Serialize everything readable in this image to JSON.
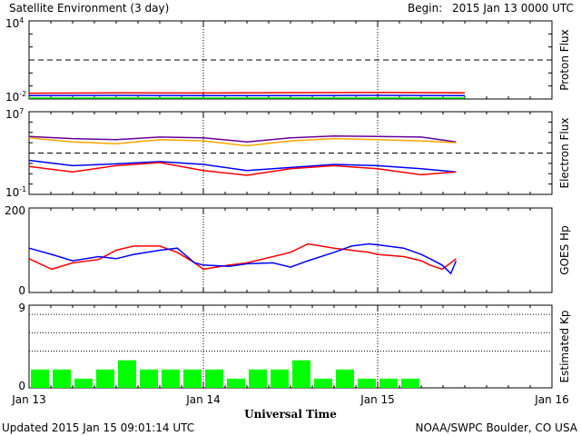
{
  "title": "Satellite Environment (3 day)",
  "begin_label": "Begin:",
  "begin_value": "2015 Jan 13 0000 UTC",
  "xlabel": "Universal Time",
  "updated": "Updated 2015 Jan 15 09:01:14 UTC",
  "credit": "NOAA/SWPC Boulder, CO USA",
  "x_ticks": [
    "Jan 13",
    "Jan 14",
    "Jan 15",
    "Jan 16"
  ],
  "colors": {
    "red": "#ff0000",
    "blue": "#0000ff",
    "green": "#00ff00",
    "orange": "#ffa500",
    "purple": "#660099",
    "kp_bar": "#00ff00"
  },
  "chart_data": [
    {
      "type": "line",
      "panel": "proton",
      "ylabel": "Proton Flux",
      "y_log": true,
      "ylim": [
        0.01,
        10000
      ],
      "ytick_labels": [
        {
          "base": "10",
          "exp": "4"
        },
        {
          "base": "10",
          "exp": "-2"
        }
      ],
      "threshold": 10,
      "x": [
        0,
        0.5,
        1,
        1.5,
        2,
        2.5
      ],
      "series": [
        {
          "color": "red",
          "values": [
            0.028,
            0.03,
            0.029,
            0.031,
            0.032,
            0.03
          ]
        },
        {
          "color": "blue",
          "values": [
            0.018,
            0.019,
            0.018,
            0.018,
            0.019,
            0.018
          ]
        },
        {
          "color": "green",
          "values": [
            0.012,
            0.012,
            0.012,
            0.012,
            0.012,
            0.012
          ]
        }
      ]
    },
    {
      "type": "line",
      "panel": "electron",
      "ylabel": "Electron Flux",
      "y_log": true,
      "ylim": [
        0.1,
        10000000
      ],
      "ytick_labels": [
        {
          "base": "10",
          "exp": "7"
        },
        {
          "base": "10",
          "exp": "-1"
        }
      ],
      "threshold": 1000,
      "x": [
        0,
        0.25,
        0.5,
        0.75,
        1,
        1.25,
        1.5,
        1.75,
        2,
        2.25,
        2.45
      ],
      "series": [
        {
          "color": "purple",
          "values": [
            40000,
            25000,
            20000,
            35000,
            30000,
            12000,
            30000,
            45000,
            40000,
            35000,
            12000
          ]
        },
        {
          "color": "orange",
          "values": [
            30000,
            12000,
            8000,
            20000,
            15000,
            5000,
            15000,
            25000,
            20000,
            15000,
            10000
          ]
        },
        {
          "color": "blue",
          "values": [
            200,
            60,
            90,
            150,
            80,
            20,
            40,
            80,
            60,
            30,
            15
          ]
        },
        {
          "color": "red",
          "values": [
            50,
            15,
            60,
            120,
            20,
            7,
            30,
            60,
            30,
            8,
            15
          ]
        }
      ]
    },
    {
      "type": "line",
      "panel": "goes_hp",
      "ylabel": "GOES Hp",
      "ylim": [
        0,
        200
      ],
      "ytick_labels": [
        "200",
        "0"
      ],
      "x": [
        0,
        0.13,
        0.25,
        0.4,
        0.5,
        0.6,
        0.75,
        0.85,
        0.95,
        1,
        1.15,
        1.25,
        1.4,
        1.5,
        1.6,
        1.75,
        1.85,
        1.95,
        2,
        2.15,
        2.25,
        2.3,
        2.37,
        2.42,
        2.45
      ],
      "series": [
        {
          "color": "red",
          "values": [
            80,
            55,
            70,
            78,
            100,
            110,
            110,
            95,
            70,
            55,
            65,
            70,
            85,
            95,
            115,
            105,
            100,
            95,
            90,
            85,
            75,
            65,
            55,
            70,
            80
          ]
        },
        {
          "color": "blue",
          "values": [
            105,
            90,
            75,
            85,
            80,
            90,
            100,
            105,
            70,
            65,
            62,
            68,
            70,
            60,
            75,
            95,
            110,
            115,
            113,
            105,
            90,
            80,
            65,
            45,
            75
          ]
        }
      ]
    },
    {
      "type": "bar",
      "panel": "kp",
      "ylabel": "Estimated Kp",
      "ylim": [
        0,
        9
      ],
      "ytick_labels": [
        "9",
        "0"
      ],
      "bar_width_hours": 3,
      "values": [
        2,
        2,
        1,
        2,
        3,
        2,
        2,
        2,
        2,
        1,
        2,
        2,
        3,
        1,
        2,
        1,
        1,
        1
      ]
    }
  ]
}
